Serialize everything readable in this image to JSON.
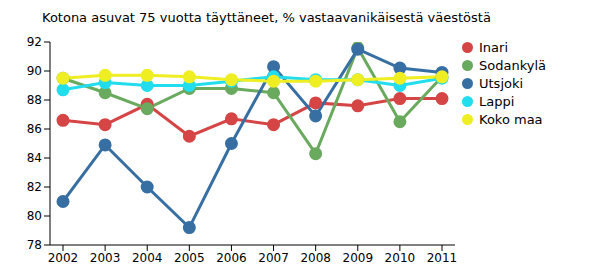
{
  "chart_data": {
    "type": "line",
    "title": "Kotona asuvat 75 vuotta täyttäneet, % vastaavanikäisestä väestöstä",
    "categories": [
      "2002",
      "2003",
      "2004",
      "2005",
      "2006",
      "2007",
      "2008",
      "2009",
      "2010",
      "2011"
    ],
    "series": [
      {
        "name": "Inari",
        "color": "#d64545",
        "values": [
          86.6,
          86.3,
          87.7,
          85.5,
          86.7,
          86.3,
          87.8,
          87.6,
          88.1,
          88.1
        ]
      },
      {
        "name": "Sodankylä",
        "color": "#6aaa5e",
        "values": [
          89.5,
          88.5,
          87.4,
          88.8,
          88.8,
          88.5,
          84.3,
          91.6,
          86.5,
          89.6
        ]
      },
      {
        "name": "Utsjoki",
        "color": "#376fa3",
        "values": [
          81.0,
          84.9,
          82.0,
          79.2,
          85.0,
          90.3,
          86.9,
          91.5,
          90.2,
          89.9
        ]
      },
      {
        "name": "Lappi",
        "color": "#22ddee",
        "values": [
          88.7,
          89.2,
          89.0,
          89.0,
          89.3,
          89.6,
          89.4,
          89.4,
          89.0,
          89.5
        ]
      },
      {
        "name": "Koko maa",
        "color": "#eeee22",
        "values": [
          89.5,
          89.7,
          89.7,
          89.6,
          89.4,
          89.3,
          89.3,
          89.4,
          89.5,
          89.6
        ]
      }
    ],
    "ylim": [
      78,
      92
    ],
    "yticks": [
      78,
      80,
      82,
      84,
      86,
      88,
      90,
      92
    ],
    "grid": false,
    "legend": "right",
    "marker": "circle"
  }
}
